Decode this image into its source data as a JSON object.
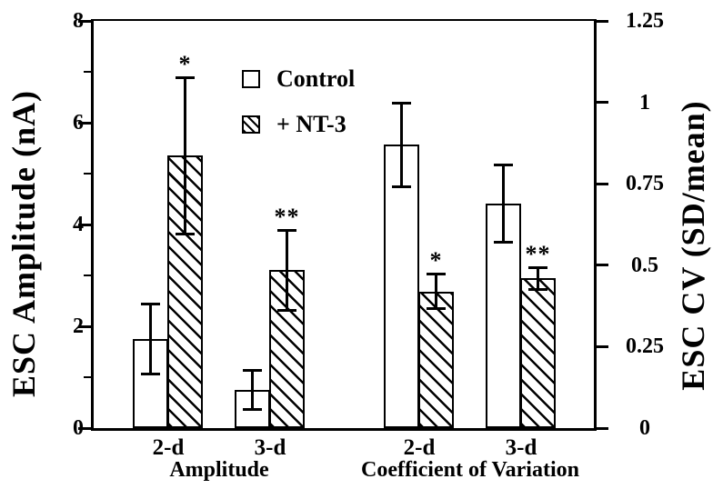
{
  "figure": {
    "background": "#ffffff",
    "ink": "#000000"
  },
  "chart_data": {
    "type": "bar",
    "grid": false,
    "legend_position": "upper-left-inside",
    "left_axis": {
      "label": "ESC Amplitude (nA)",
      "min": 0,
      "max": 8,
      "major_ticks": [
        0,
        2,
        4,
        6,
        8
      ],
      "major_tick_labels": [
        "0",
        "2",
        "4",
        "6",
        "8"
      ],
      "minor_ticks": [
        1,
        3,
        5,
        7
      ]
    },
    "right_axis": {
      "label": "ESC CV (SD/mean)",
      "min": 0,
      "max": 1.25,
      "ticks": [
        0,
        0.25,
        0.5,
        0.75,
        1,
        1.25
      ],
      "tick_labels": [
        "0",
        "0.25",
        "0.5",
        "0.75",
        "1",
        "1.25"
      ]
    },
    "series_legend": [
      {
        "name": "Control",
        "style": "open"
      },
      {
        "name": "+ NT-3",
        "style": "hatched"
      }
    ],
    "sections": [
      {
        "label": "Amplitude",
        "axis": "left",
        "units": "nA",
        "groups": [
          {
            "label": "2-d",
            "bars": [
              {
                "series": "Control",
                "value": 1.75,
                "error": 0.7,
                "sig": ""
              },
              {
                "series": "+ NT-3",
                "value": 5.35,
                "error": 1.55,
                "sig": "*"
              }
            ]
          },
          {
            "label": "3-d",
            "bars": [
              {
                "series": "Control",
                "value": 0.75,
                "error": 0.4,
                "sig": ""
              },
              {
                "series": "+ NT-3",
                "value": 3.1,
                "error": 0.8,
                "sig": "**"
              }
            ]
          }
        ]
      },
      {
        "label": "Coefficient of Variation",
        "axis": "right",
        "units": "SD/mean",
        "groups": [
          {
            "label": "2-d",
            "bars": [
              {
                "series": "Control",
                "value": 0.87,
                "error": 0.13,
                "sig": ""
              },
              {
                "series": "+ NT-3",
                "value": 0.42,
                "error": 0.055,
                "sig": "*"
              }
            ]
          },
          {
            "label": "3-d",
            "bars": [
              {
                "series": "Control",
                "value": 0.69,
                "error": 0.12,
                "sig": ""
              },
              {
                "series": "+ NT-3",
                "value": 0.46,
                "error": 0.035,
                "sig": "**"
              }
            ]
          }
        ]
      }
    ]
  }
}
